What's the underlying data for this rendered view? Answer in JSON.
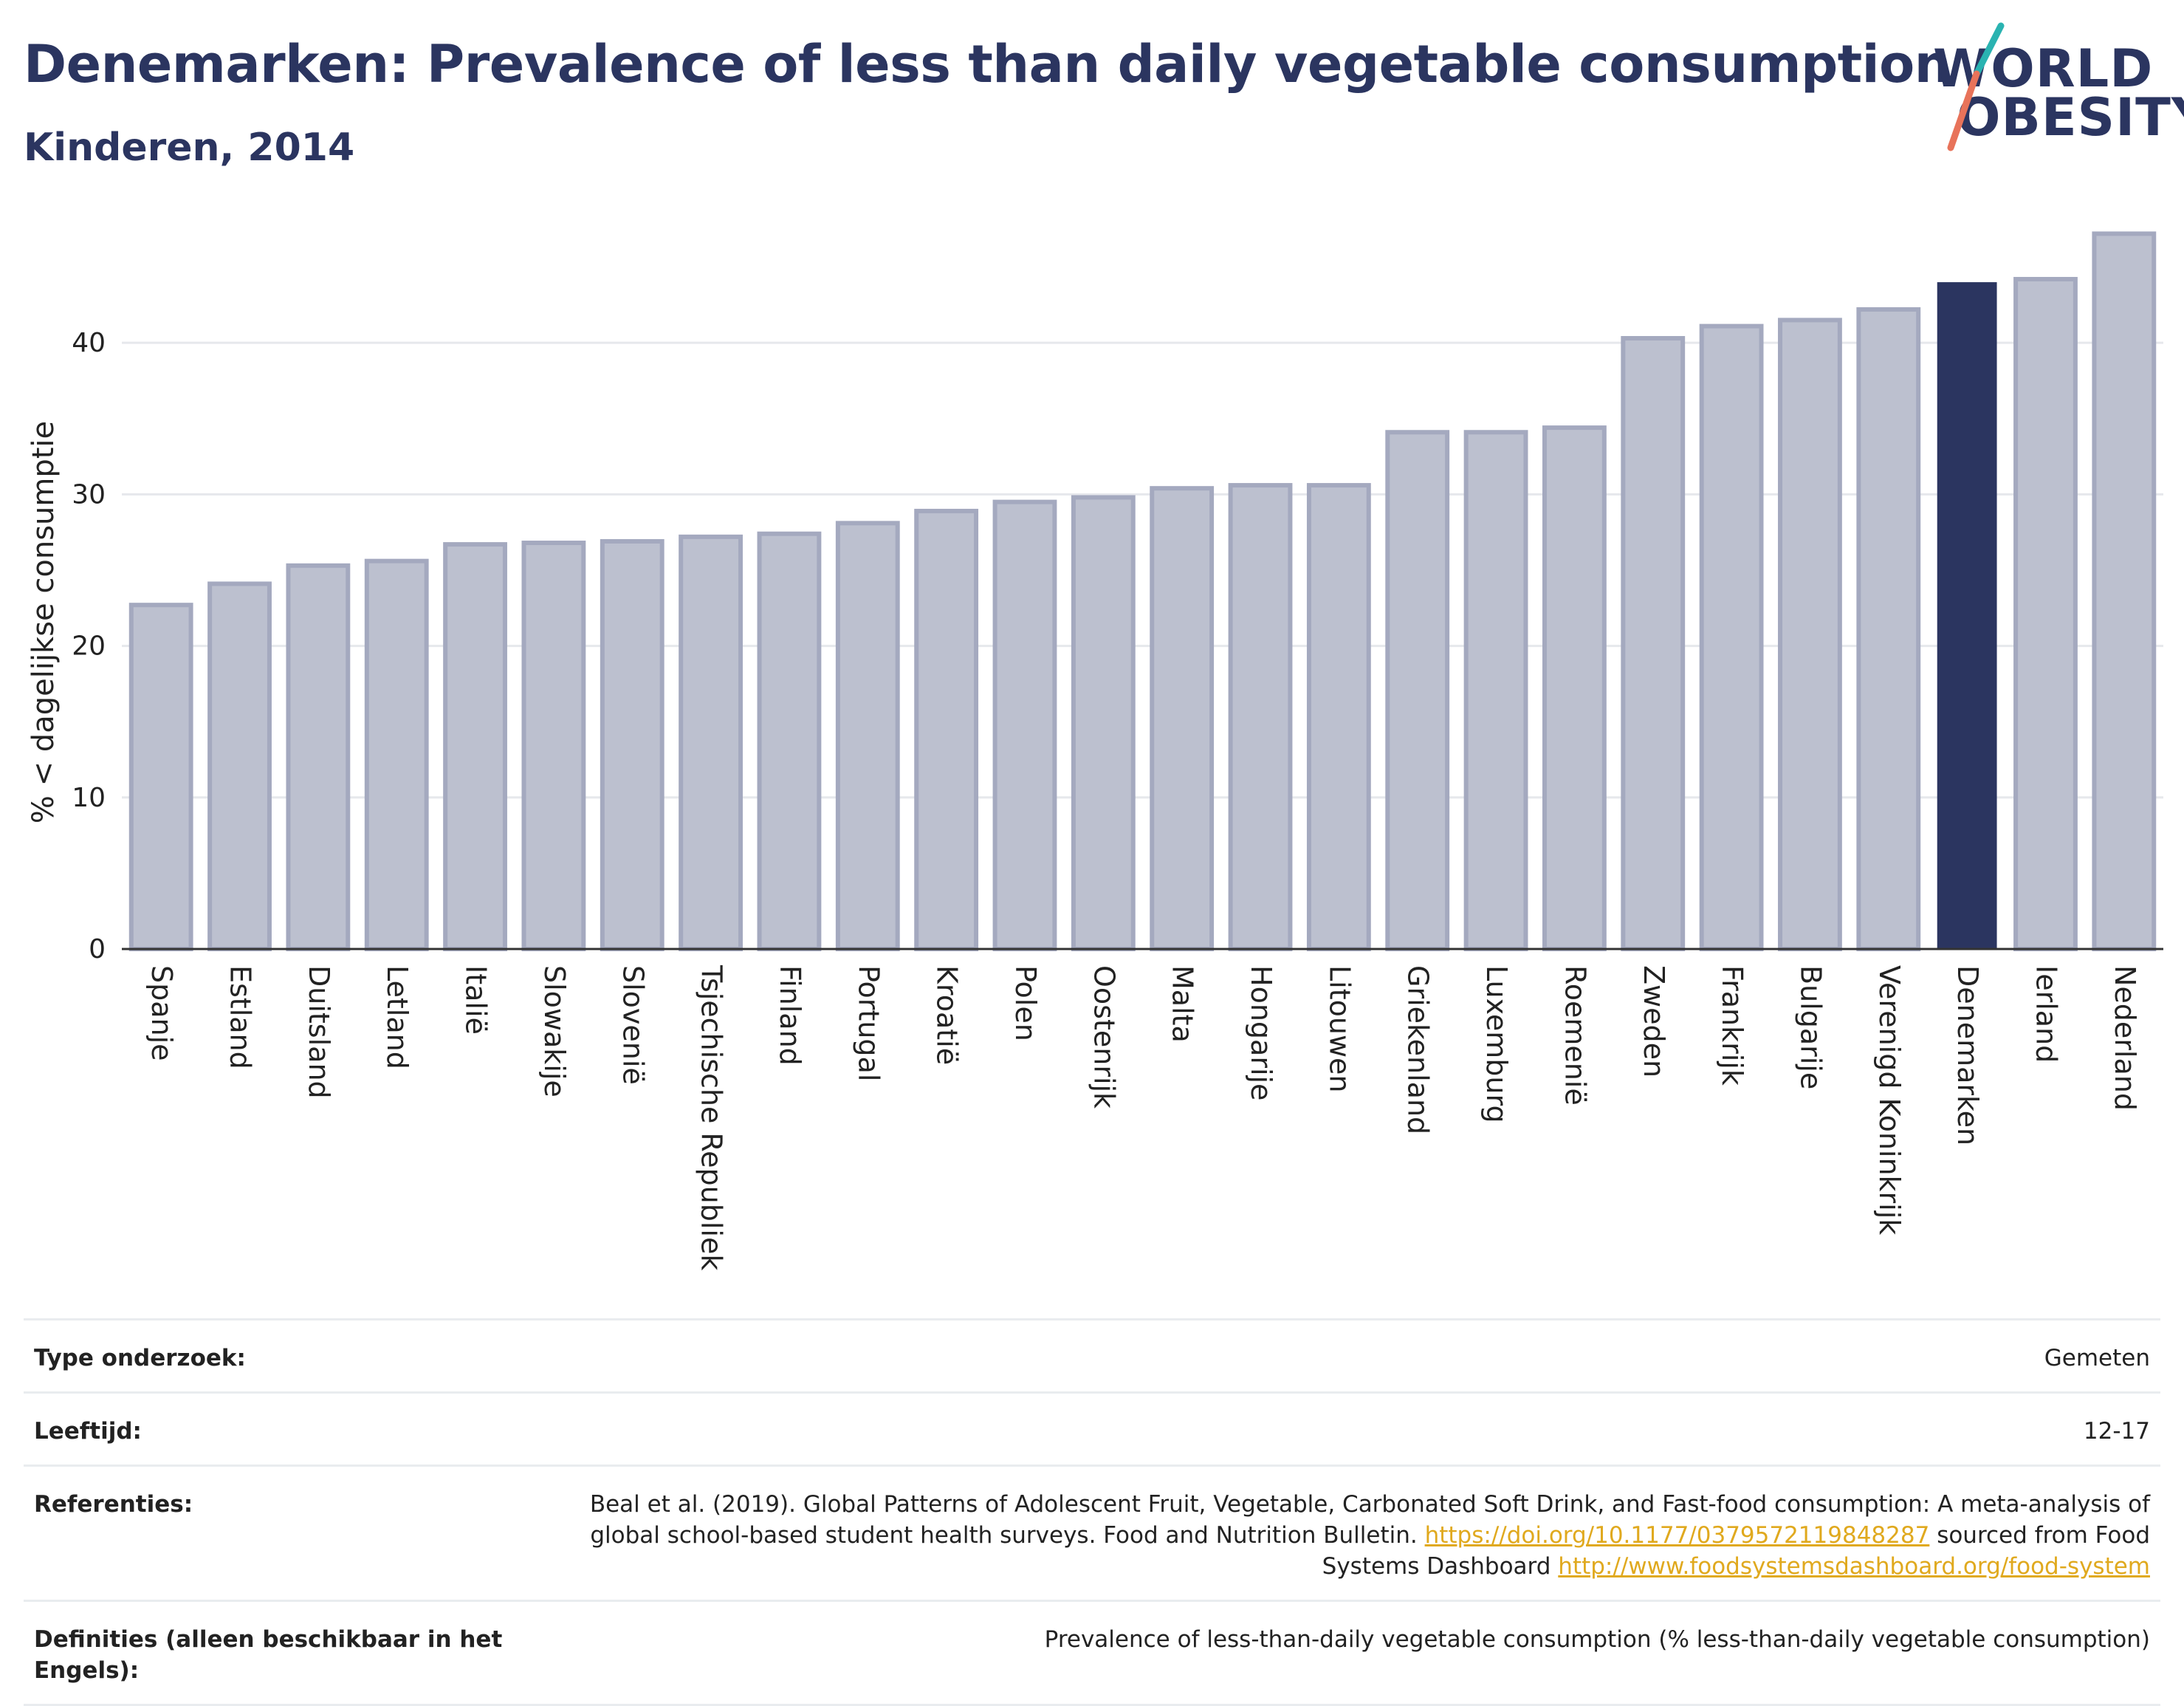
{
  "header": {
    "title": "Denemarken: Prevalence of less than daily vegetable consumption",
    "subtitle": "Kinderen, 2014"
  },
  "logo": {
    "line1": "WORLD",
    "line2": "OBESITY",
    "accent_colors": [
      "#2ab3b1",
      "#e8735a"
    ]
  },
  "colors": {
    "bar": "#bcc0cf",
    "bar_border": "#a4a9bf",
    "highlight": "#2b3560",
    "grid": "#e6e8ec",
    "axis": "#333333"
  },
  "chart_data": {
    "type": "bar",
    "ylabel": "% < dagelijkse consumptie",
    "xlabel": "",
    "ylim": [
      0,
      48
    ],
    "yticks": [
      0,
      10,
      20,
      30,
      40
    ],
    "grid": true,
    "highlight": "Denemarken",
    "categories": [
      "Spanje",
      "Estland",
      "Duitsland",
      "Letland",
      "Italië",
      "Slowakije",
      "Slovenië",
      "Tsjechische Republiek",
      "Finland",
      "Portugal",
      "Kroatië",
      "Polen",
      "Oostenrijk",
      "Malta",
      "Hongarije",
      "Litouwen",
      "Griekenland",
      "Luxemburg",
      "Roemenië",
      "Zweden",
      "Frankrijk",
      "Bulgarije",
      "Verenigd Koninkrijk",
      "Denemarken",
      "Ierland",
      "Nederland"
    ],
    "values": [
      22.7,
      24.1,
      25.3,
      25.6,
      26.7,
      26.8,
      26.9,
      27.2,
      27.4,
      28.1,
      28.9,
      29.5,
      29.8,
      30.4,
      30.6,
      30.6,
      34.1,
      34.1,
      34.4,
      40.3,
      41.1,
      41.5,
      42.2,
      44.0,
      44.2,
      47.2
    ]
  },
  "info": {
    "rows": [
      {
        "label": "Type onderzoek:",
        "value": "Gemeten"
      },
      {
        "label": "Leeftijd:",
        "value": "12-17"
      },
      {
        "label": "Referenties:",
        "value_pre": "Beal et al. (2019). Global Patterns of Adolescent Fruit, Vegetable, Carbonated Soft Drink, and Fast-food consumption: A meta-analysis of global school-based student health surveys. Food and Nutrition Bulletin.",
        "link1": "https://doi.org/10.1177/0379572119848287",
        "value_mid": "sourced from Food Systems Dashboard",
        "link2": "http://www.foodsystemsdashboard.org/food-system"
      },
      {
        "label": "Definities (alleen beschikbaar in het Engels):",
        "value": "Prevalence of less-than-daily vegetable consumption (% less-than-daily vegetable consumption)"
      }
    ]
  }
}
